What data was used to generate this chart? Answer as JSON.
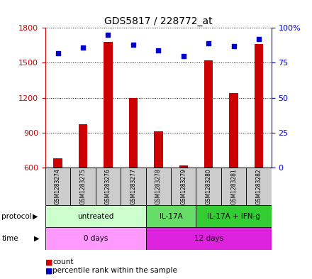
{
  "title": "GDS5817 / 228772_at",
  "samples": [
    "GSM1283274",
    "GSM1283275",
    "GSM1283276",
    "GSM1283277",
    "GSM1283278",
    "GSM1283279",
    "GSM1283280",
    "GSM1283281",
    "GSM1283282"
  ],
  "counts": [
    680,
    970,
    1680,
    1200,
    910,
    615,
    1520,
    1240,
    1660
  ],
  "percentiles": [
    82,
    86,
    95,
    88,
    84,
    80,
    89,
    87,
    92
  ],
  "ylim_left": [
    600,
    1800
  ],
  "ylim_right": [
    0,
    100
  ],
  "yticks_left": [
    600,
    900,
    1200,
    1500,
    1800
  ],
  "yticks_right": [
    0,
    25,
    50,
    75,
    100
  ],
  "ytick_right_labels": [
    "0",
    "25",
    "50",
    "75",
    "100%"
  ],
  "bar_color": "#cc0000",
  "dot_color": "#0000cc",
  "protocol_groups": [
    {
      "label": "untreated",
      "indices": [
        0,
        1,
        2,
        3
      ],
      "color": "#ccffcc"
    },
    {
      "label": "IL-17A",
      "indices": [
        4,
        5
      ],
      "color": "#66dd66"
    },
    {
      "label": "IL-17A + IFN-g",
      "indices": [
        6,
        7,
        8
      ],
      "color": "#33cc33"
    }
  ],
  "time_groups": [
    {
      "label": "0 days",
      "indices": [
        0,
        1,
        2,
        3
      ],
      "color": "#ff99ff"
    },
    {
      "label": "12 days",
      "indices": [
        4,
        5,
        6,
        7,
        8
      ],
      "color": "#dd22dd"
    }
  ],
  "protocol_label": "protocol",
  "time_label": "time",
  "legend_count": "count",
  "legend_percentile": "percentile rank within the sample",
  "background_color": "#ffffff",
  "sample_box_color": "#cccccc",
  "bar_width": 0.35
}
